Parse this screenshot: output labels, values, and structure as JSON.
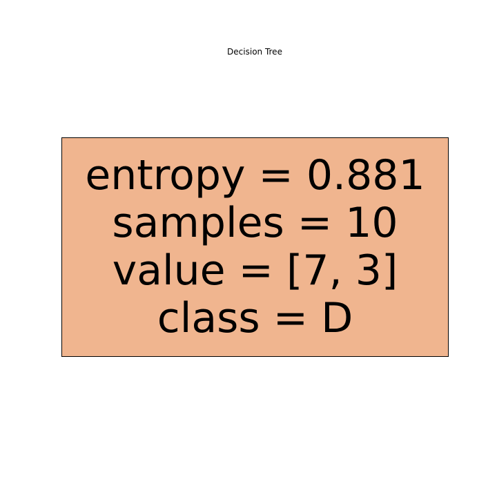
{
  "title": "Decision Tree",
  "node": {
    "fill_color": "#f0b58f",
    "border_color": "#000000",
    "lines": [
      "entropy = 0.881",
      "samples = 10",
      "value = [7, 3]",
      "class = D"
    ]
  }
}
